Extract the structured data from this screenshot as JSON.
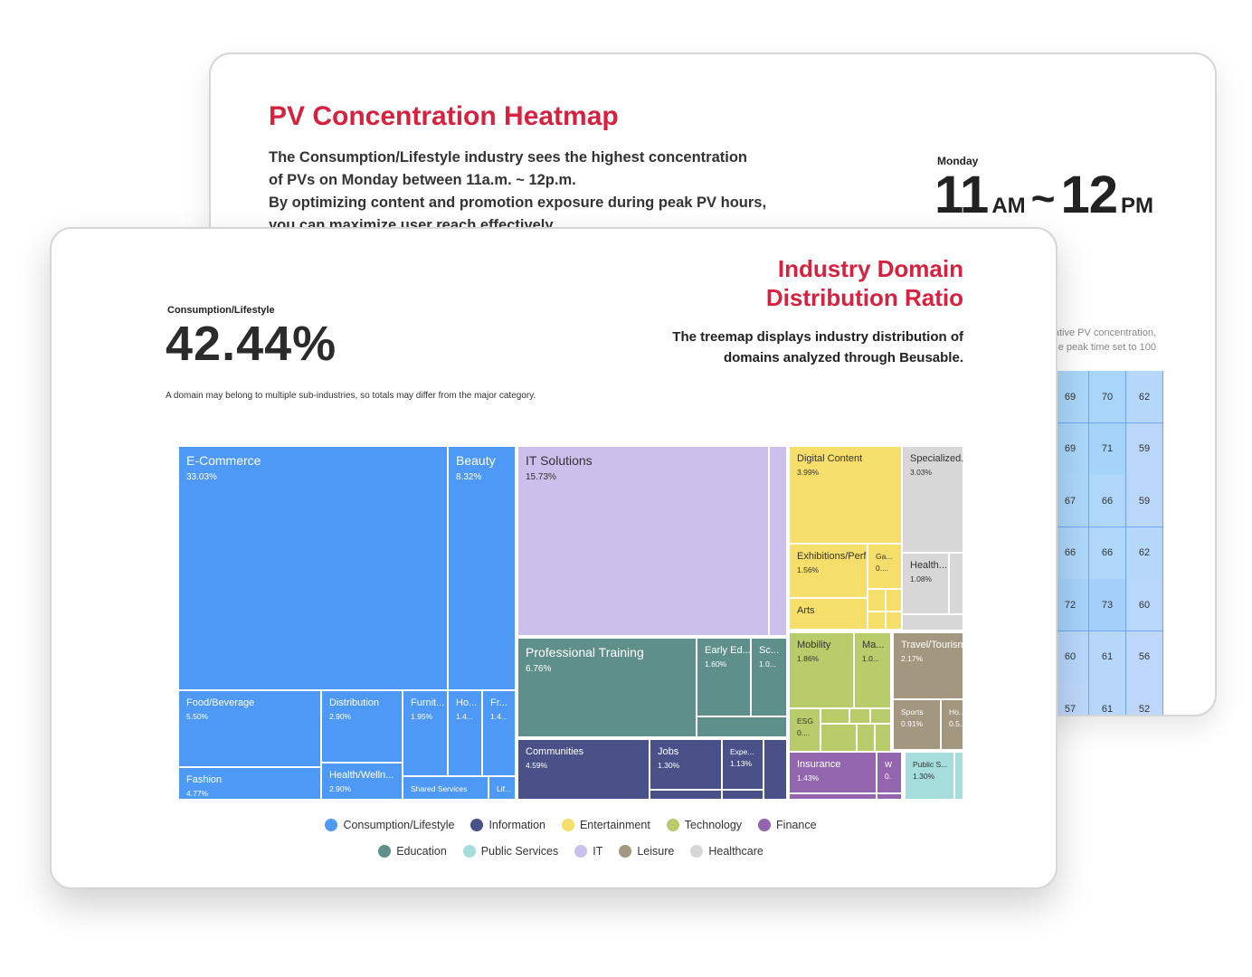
{
  "heatmap_card": {
    "title": "PV Concentration Heatmap",
    "desc_lines": [
      "The Consumption/Lifestyle industry sees the highest concentration",
      "of PVs on Monday between 11a.m. ~ 12p.m.",
      "By optimizing content and promotion exposure during peak PV hours,",
      "you can maximize user reach effectively."
    ],
    "peak_day": "Monday",
    "peak_start": "11",
    "peak_start_unit": "AM",
    "peak_sep": "~",
    "peak_end": "12",
    "peak_end_unit": "PM",
    "note_lines": [
      "ative PV concentration,",
      "he peak time set to 100"
    ],
    "heatmap_rows": [
      [
        69,
        70,
        62
      ],
      [
        69,
        71,
        59
      ],
      [
        67,
        66,
        59
      ],
      [
        66,
        66,
        62
      ],
      [
        72,
        73,
        60
      ],
      [
        60,
        61,
        56
      ],
      [
        57,
        61,
        52
      ]
    ]
  },
  "treemap_card": {
    "title_lines": [
      "Industry Domain",
      "Distribution Ratio"
    ],
    "desc_lines": [
      "The treemap displays industry distribution of",
      "domains analyzed through Beusable."
    ],
    "stat_label": "Consumption/Lifestyle",
    "stat_value": "42.44%",
    "note": "A domain may belong to multiple sub-industries, so totals may differ from the major category."
  },
  "chart_data": {
    "type": "treemap",
    "title": "",
    "colors": {
      "Consumption/Lifestyle": "#4f99f6",
      "Information": "#4a5088",
      "Entertainment": "#f5df6a",
      "Technology": "#b8cc6c",
      "Finance": "#9265ae",
      "Education": "#5f8f8a",
      "Public Services": "#a5dddd",
      "IT": "#cdbfeb",
      "Leisure": "#a39780",
      "Healthcare": "#d7d7d7"
    },
    "legend": [
      "Consumption/Lifestyle",
      "Information",
      "Entertainment",
      "Technology",
      "Finance",
      "Education",
      "Public Services",
      "IT",
      "Leisure",
      "Healthcare"
    ],
    "items": [
      {
        "category": "Consumption/Lifestyle",
        "name": "E-Commerce",
        "value": 33.03,
        "label": "33.03%"
      },
      {
        "category": "Consumption/Lifestyle",
        "name": "Beauty",
        "value": 8.32,
        "label": "8.32%"
      },
      {
        "category": "Consumption/Lifestyle",
        "name": "Food/Beverage",
        "value": 5.5,
        "label": "5.50%"
      },
      {
        "category": "Consumption/Lifestyle",
        "name": "Distribution",
        "value": 2.9,
        "label": "2.90%"
      },
      {
        "category": "Consumption/Lifestyle",
        "name": "Furnit...",
        "value": 1.95,
        "label": "1.95%"
      },
      {
        "category": "Consumption/Lifestyle",
        "name": "Ho...",
        "value": 1.4,
        "label": "1.4..."
      },
      {
        "category": "Consumption/Lifestyle",
        "name": "Fr...",
        "value": 1.4,
        "label": "1.4..."
      },
      {
        "category": "Consumption/Lifestyle",
        "name": "Fashion",
        "value": 4.77,
        "label": "4.77%"
      },
      {
        "category": "Consumption/Lifestyle",
        "name": "Health/Welln...",
        "value": 2.9,
        "label": "2.90%"
      },
      {
        "category": "Consumption/Lifestyle",
        "name": "Shared Services",
        "value": 0.8,
        "label": ""
      },
      {
        "category": "Consumption/Lifestyle",
        "name": "Lif...",
        "value": 0.4,
        "label": ""
      },
      {
        "category": "IT",
        "name": "IT Solutions",
        "value": 15.73,
        "label": "15.73%"
      },
      {
        "category": "IT",
        "name": "",
        "value": 0.9,
        "label": ""
      },
      {
        "category": "Education",
        "name": "Professional Training",
        "value": 6.76,
        "label": "6.76%"
      },
      {
        "category": "Education",
        "name": "Early Ed...",
        "value": 1.6,
        "label": "1.60%"
      },
      {
        "category": "Education",
        "name": "Sc...",
        "value": 1.0,
        "label": "1.0..."
      },
      {
        "category": "Education",
        "name": "",
        "value": 0.9,
        "label": ""
      },
      {
        "category": "Information",
        "name": "Communities",
        "value": 4.59,
        "label": "4.59%"
      },
      {
        "category": "Information",
        "name": "Jobs",
        "value": 1.3,
        "label": "1.30%"
      },
      {
        "category": "Information",
        "name": "Expe...",
        "value": 1.13,
        "label": "1.13%"
      },
      {
        "category": "Information",
        "name": "",
        "value": 0.6,
        "label": ""
      },
      {
        "category": "Information",
        "name": "",
        "value": 0.3,
        "label": ""
      },
      {
        "category": "Information",
        "name": "",
        "value": 0.2,
        "label": ""
      },
      {
        "category": "Entertainment",
        "name": "Digital Content",
        "value": 3.99,
        "label": "3.99%"
      },
      {
        "category": "Entertainment",
        "name": "Exhibitions/Perf...",
        "value": 1.56,
        "label": "1.56%"
      },
      {
        "category": "Entertainment",
        "name": "Ga...",
        "value": 0.5,
        "label": "0...."
      },
      {
        "category": "Entertainment",
        "name": "Arts",
        "value": 0.8,
        "label": ""
      },
      {
        "category": "Entertainment",
        "name": "",
        "value": 0.3,
        "label": ""
      },
      {
        "category": "Entertainment",
        "name": "",
        "value": 0.2,
        "label": ""
      },
      {
        "category": "Entertainment",
        "name": "",
        "value": 0.2,
        "label": ""
      },
      {
        "category": "Entertainment",
        "name": "",
        "value": 0.2,
        "label": ""
      },
      {
        "category": "Healthcare",
        "name": "Specialized...",
        "value": 3.03,
        "label": "3.03%"
      },
      {
        "category": "Healthcare",
        "name": "Health...",
        "value": 1.08,
        "label": "1.08%"
      },
      {
        "category": "Healthcare",
        "name": "C...",
        "value": 0.5,
        "label": "0"
      },
      {
        "category": "Healthcare",
        "name": "",
        "value": 0.4,
        "label": ""
      },
      {
        "category": "Technology",
        "name": "Mobility",
        "value": 1.86,
        "label": "1.86%"
      },
      {
        "category": "Technology",
        "name": "Ma...",
        "value": 1.0,
        "label": "1.0..."
      },
      {
        "category": "Technology",
        "name": "ESG",
        "value": 0.5,
        "label": "0...."
      },
      {
        "category": "Technology",
        "name": "",
        "value": 0.2,
        "label": ""
      },
      {
        "category": "Technology",
        "name": "",
        "value": 0.2,
        "label": ""
      },
      {
        "category": "Technology",
        "name": "",
        "value": 0.2,
        "label": ""
      },
      {
        "category": "Technology",
        "name": "",
        "value": 0.2,
        "label": ""
      },
      {
        "category": "Technology",
        "name": "",
        "value": 0.2,
        "label": ""
      },
      {
        "category": "Technology",
        "name": "",
        "value": 0.2,
        "label": ""
      },
      {
        "category": "Leisure",
        "name": "Travel/Tourism",
        "value": 2.17,
        "label": "2.17%"
      },
      {
        "category": "Leisure",
        "name": "Sports",
        "value": 0.91,
        "label": "0.91%"
      },
      {
        "category": "Leisure",
        "name": "Ho...",
        "value": 0.5,
        "label": "0.5..."
      },
      {
        "category": "Finance",
        "name": "Insurance",
        "value": 1.43,
        "label": "1.43%"
      },
      {
        "category": "Finance",
        "name": "W",
        "value": 0.3,
        "label": "0."
      },
      {
        "category": "Finance",
        "name": "",
        "value": 0.3,
        "label": ""
      },
      {
        "category": "Finance",
        "name": "",
        "value": 0.2,
        "label": ""
      },
      {
        "category": "Public Services",
        "name": "Public S...",
        "value": 1.3,
        "label": "1.30%"
      },
      {
        "category": "Public Services",
        "name": "",
        "value": 0.3,
        "label": ""
      }
    ]
  }
}
